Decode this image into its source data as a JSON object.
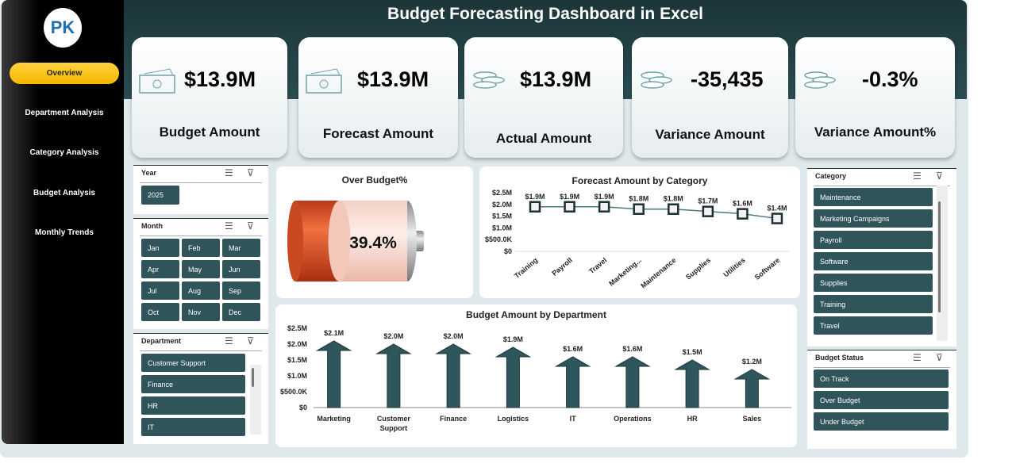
{
  "title": "Budget Forecasting Dashboard in Excel",
  "logo_text": "PK",
  "nav": [
    {
      "label": "Overview",
      "active": true
    },
    {
      "label": "Department Analysis"
    },
    {
      "label": "Category Analysis"
    },
    {
      "label": "Budget Analysis"
    },
    {
      "label": "Monthly Trends"
    }
  ],
  "kpis": [
    {
      "value": "$13.9M",
      "label": "Budget Amount",
      "icon": "cash-icon"
    },
    {
      "value": "$13.9M",
      "label": "Forecast Amount",
      "icon": "cash-icon"
    },
    {
      "value": "$13.9M",
      "label": "Actual Amount",
      "icon": "coins-icon"
    },
    {
      "value": "-35,435",
      "label": "Variance Amount",
      "icon": "coins-icon"
    },
    {
      "value": "-0.3%",
      "label": "Variance Amount%",
      "icon": "coins-icon"
    }
  ],
  "slicers": {
    "year": {
      "title": "Year",
      "items": [
        "2025"
      ]
    },
    "month": {
      "title": "Month",
      "items": [
        "Jan",
        "Feb",
        "Mar",
        "Apr",
        "May",
        "Jun",
        "Jul",
        "Aug",
        "Sep",
        "Oct",
        "Nov",
        "Dec"
      ]
    },
    "department": {
      "title": "Department",
      "items": [
        "Customer Support",
        "Finance",
        "HR",
        "IT"
      ]
    },
    "category": {
      "title": "Category",
      "items": [
        "Maintenance",
        "Marketing Campaigns",
        "Payroll",
        "Software",
        "Supplies",
        "Training",
        "Travel"
      ]
    },
    "status": {
      "title": "Budget Status",
      "items": [
        "On Track",
        "Over Budget",
        "Under Budget"
      ]
    }
  },
  "colors": {
    "accent": "#2f545a",
    "header": "#1c3539",
    "nav_active": "#f5b800",
    "battery_fill": "#e2582a"
  },
  "chart_data": [
    {
      "type": "gauge",
      "title": "Over Budget%",
      "value": 39.4,
      "label": "39.4%"
    },
    {
      "type": "line",
      "title": "Forecast Amount by Category",
      "categories": [
        "Training",
        "Payroll",
        "Travel",
        "Marketing...",
        "Maintenance",
        "Supplies",
        "Utilities",
        "Software"
      ],
      "values": [
        1.9,
        1.9,
        1.9,
        1.8,
        1.8,
        1.7,
        1.6,
        1.4
      ],
      "labels": [
        "$1.9M",
        "$1.9M",
        "$1.9M",
        "$1.8M",
        "$1.8M",
        "$1.7M",
        "$1.6M",
        "$1.4M"
      ],
      "yticks": [
        "$0",
        "$500.0K",
        "$1.0M",
        "$1.5M",
        "$2.0M",
        "$2.5M"
      ],
      "ylim": [
        0,
        2.5
      ],
      "unit": "M"
    },
    {
      "type": "bar",
      "title": "Budget Amount by Department",
      "categories": [
        "Marketing",
        "Customer Support",
        "Finance",
        "Logistics",
        "IT",
        "Operations",
        "HR",
        "Sales"
      ],
      "values": [
        2.1,
        2.0,
        2.0,
        1.9,
        1.6,
        1.6,
        1.5,
        1.2
      ],
      "labels": [
        "$2.1M",
        "$2.0M",
        "$2.0M",
        "$1.9M",
        "$1.6M",
        "$1.6M",
        "$1.5M",
        "$1.2M"
      ],
      "yticks": [
        "$0",
        "$500.0K",
        "$1.0M",
        "$1.5M",
        "$2.0M",
        "$2.5M"
      ],
      "ylim": [
        0,
        2.5
      ],
      "unit": "M"
    }
  ]
}
